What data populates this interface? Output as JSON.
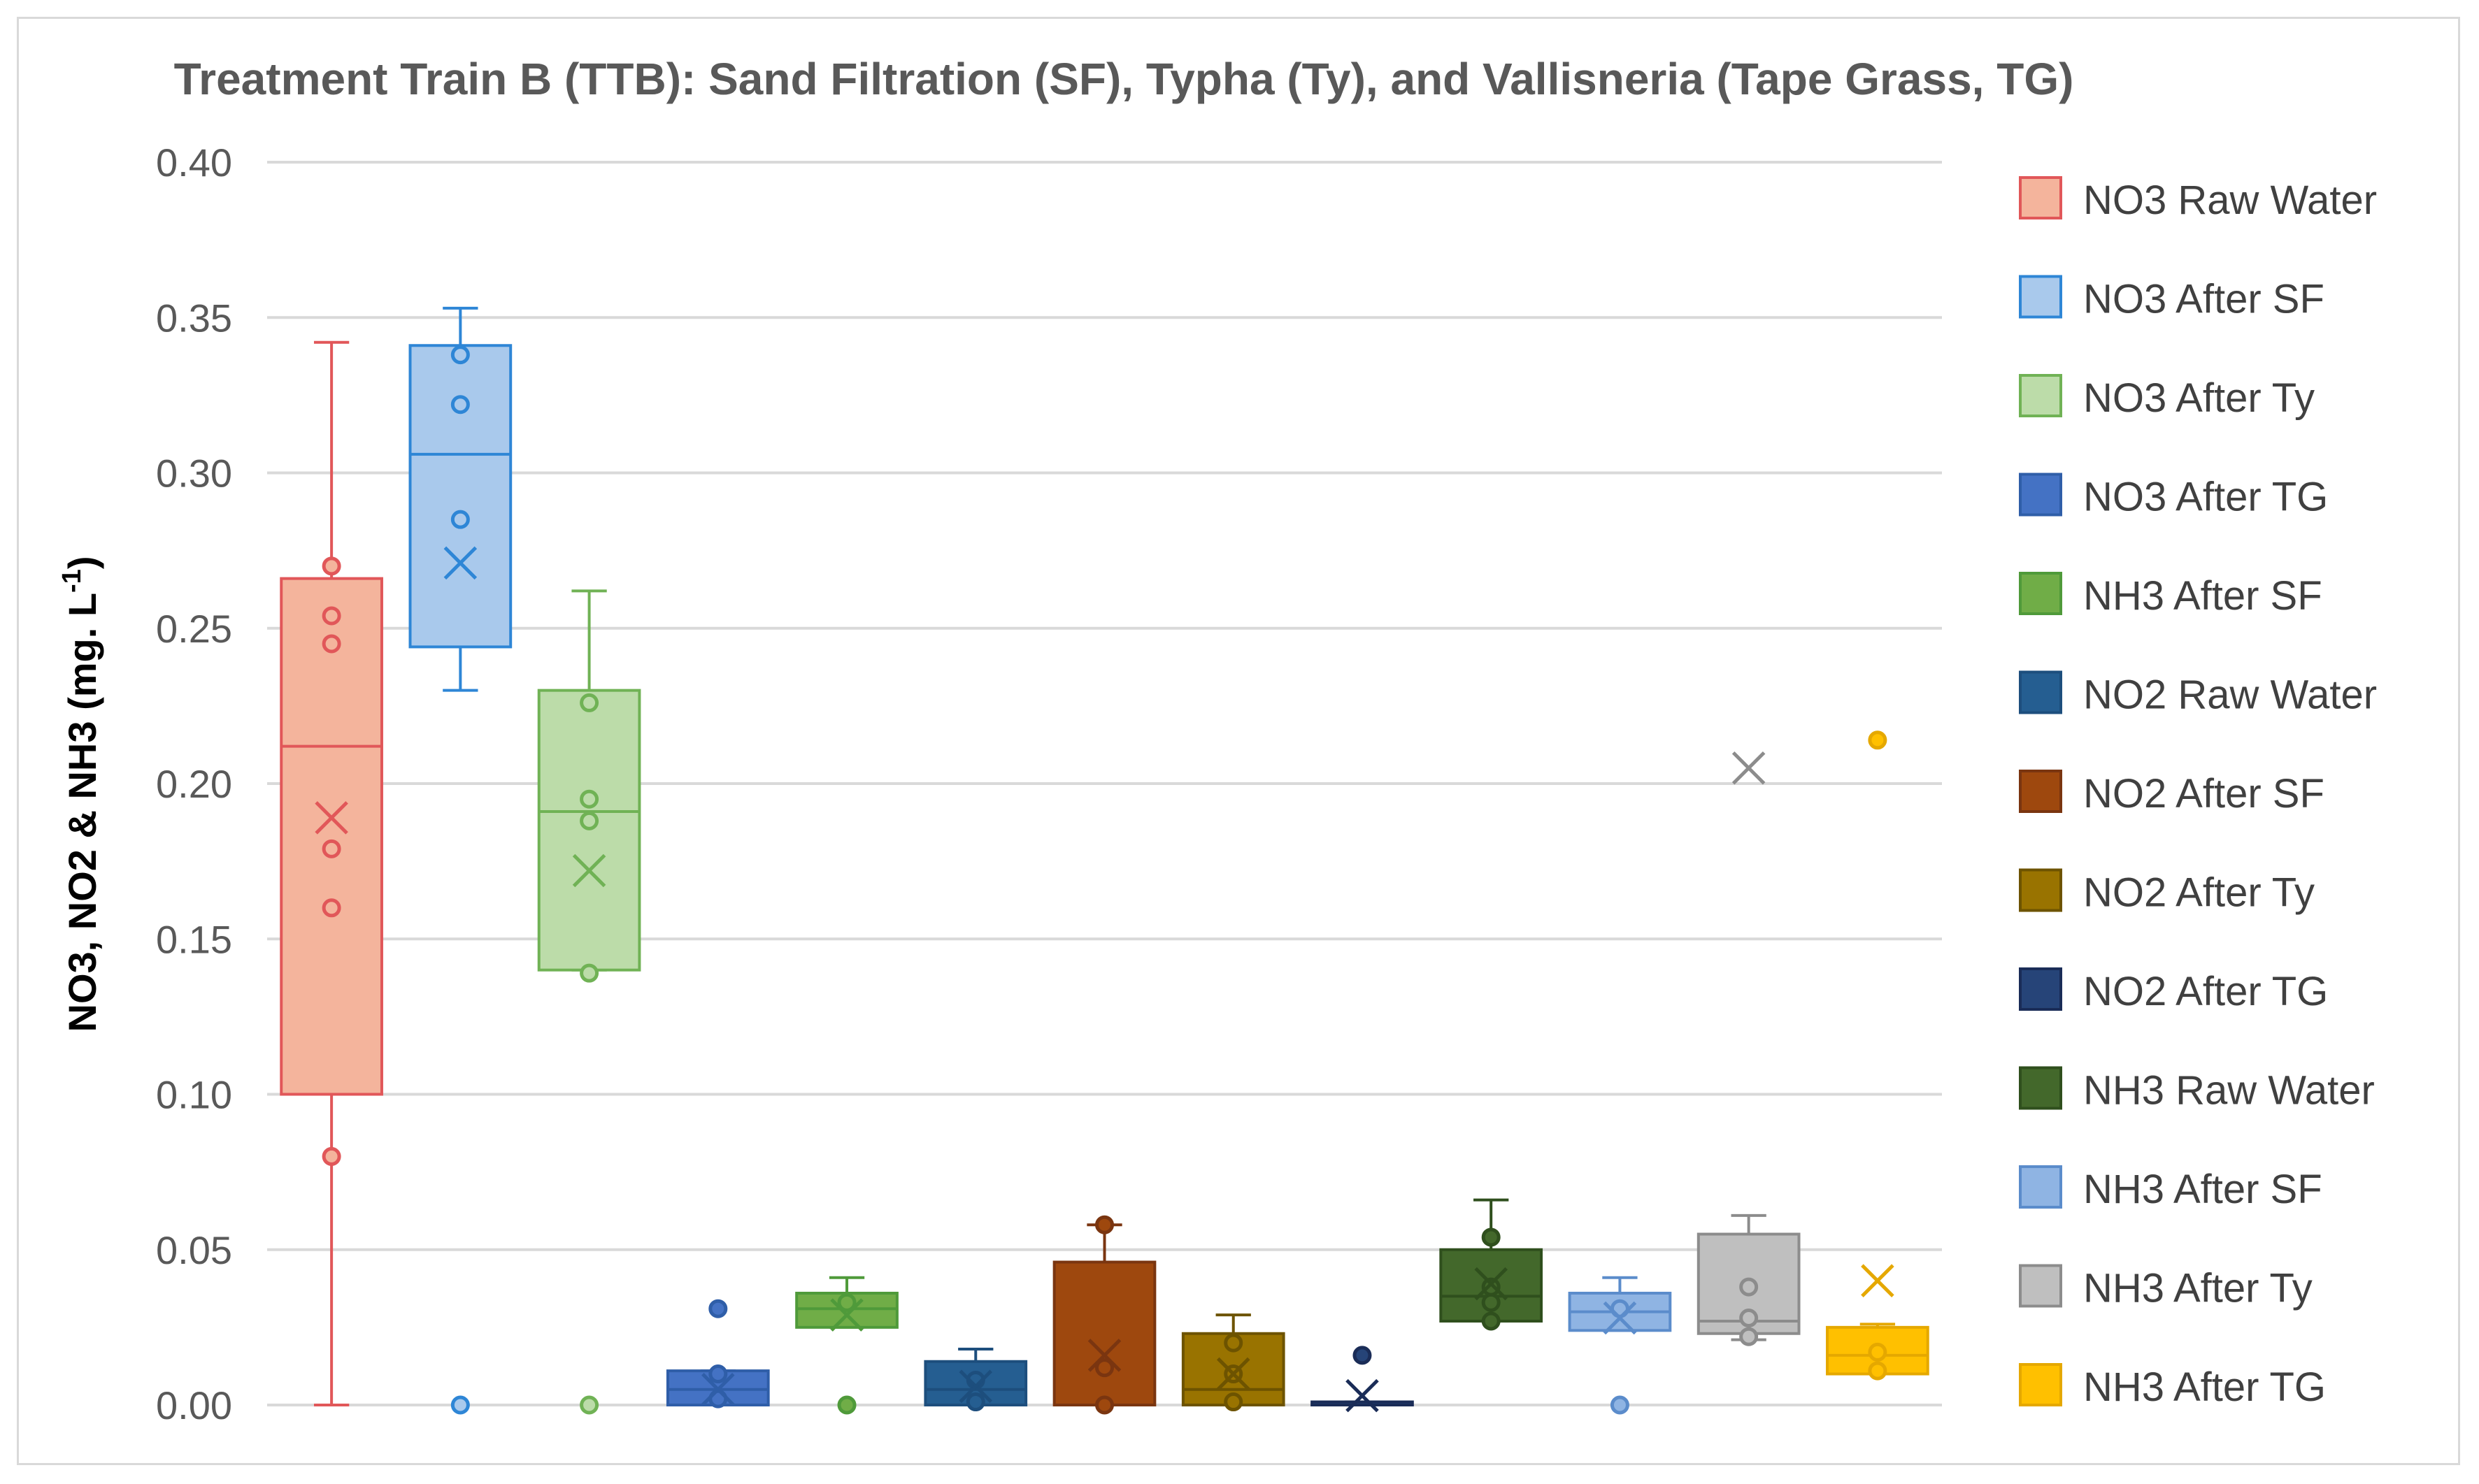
{
  "chart_data": {
    "type": "box",
    "title": "Treatment Train B (TTB): Sand Filtration (SF), Typha (Ty), and Vallisneria (Tape Grass, TG)",
    "ylabel": "NO3, NO2 & NH3 (mg. L",
    "ylabel_superscript": "-1",
    "ylabel_suffix": ")",
    "ylim": [
      0,
      0.4
    ],
    "yticks": [
      "0.00",
      "0.05",
      "0.10",
      "0.15",
      "0.20",
      "0.25",
      "0.30",
      "0.35",
      "0.40"
    ],
    "grid": true,
    "legend_position": "right",
    "series": [
      {
        "name": "NO3 Raw Water",
        "color": "#e15759",
        "fill": "#f4b49c",
        "whisker_low": 0.0,
        "q1": 0.1,
        "median": 0.212,
        "q3": 0.266,
        "whisker_high": 0.342,
        "mean": 0.189,
        "points": [
          0.08,
          0.16,
          0.179,
          0.245,
          0.254,
          0.27
        ]
      },
      {
        "name": "NO3 After SF",
        "color": "#2e86d6",
        "fill": "#a9c9ec",
        "whisker_low": 0.23,
        "q1": 0.244,
        "median": 0.306,
        "q3": 0.341,
        "whisker_high": 0.353,
        "mean": 0.271,
        "points": [
          0.0,
          0.285,
          0.322,
          0.338
        ]
      },
      {
        "name": "NO3 After Ty",
        "color": "#70b255",
        "fill": "#bcdca9",
        "whisker_low": 0.14,
        "q1": 0.14,
        "median": 0.191,
        "q3": 0.23,
        "whisker_high": 0.262,
        "mean": 0.172,
        "points": [
          0.0,
          0.139,
          0.188,
          0.195,
          0.226
        ]
      },
      {
        "name": "NO3 After TG",
        "color": "#2f5ea8",
        "fill": "#4472c4",
        "whisker_low": 0.0,
        "q1": 0.0,
        "median": 0.005,
        "q3": 0.011,
        "whisker_high": 0.011,
        "mean": 0.005,
        "points": [
          0.002,
          0.01,
          0.031
        ]
      },
      {
        "name": "NH3 After SF",
        "color": "#4f9a3a",
        "fill": "#70ad47",
        "whisker_low": 0.025,
        "q1": 0.025,
        "median": 0.031,
        "q3": 0.036,
        "whisker_high": 0.041,
        "mean": 0.029,
        "points": [
          0.0,
          0.033
        ]
      },
      {
        "name": "NO2 Raw Water",
        "color": "#1d4e7d",
        "fill": "#255e91",
        "whisker_low": 0.0,
        "q1": 0.0,
        "median": 0.005,
        "q3": 0.014,
        "whisker_high": 0.018,
        "mean": 0.006,
        "points": [
          0.001,
          0.008
        ]
      },
      {
        "name": "NO2 After SF",
        "color": "#7a3510",
        "fill": "#9e480e",
        "whisker_low": 0.0,
        "q1": 0.0,
        "median": 0.0,
        "q3": 0.046,
        "whisker_high": 0.058,
        "mean": 0.016,
        "points": [
          0.0,
          0.012,
          0.058
        ]
      },
      {
        "name": "NO2 After Ty",
        "color": "#6d5300",
        "fill": "#997300",
        "whisker_low": 0.0,
        "q1": 0.0,
        "median": 0.005,
        "q3": 0.023,
        "whisker_high": 0.029,
        "mean": 0.01,
        "points": [
          0.001,
          0.01,
          0.02
        ]
      },
      {
        "name": "NO2 After TG",
        "color": "#1a2c57",
        "fill": "#264478",
        "whisker_low": 0.0,
        "q1": 0.0,
        "median": 0.0,
        "q3": 0.001,
        "whisker_high": 0.001,
        "mean": 0.003,
        "points": [
          0.016
        ]
      },
      {
        "name": "NH3 Raw Water",
        "color": "#2f4f1d",
        "fill": "#43682b",
        "whisker_low": 0.027,
        "q1": 0.027,
        "median": 0.035,
        "q3": 0.05,
        "whisker_high": 0.066,
        "mean": 0.039,
        "points": [
          0.027,
          0.033,
          0.038,
          0.054
        ]
      },
      {
        "name": "NH3 After SF",
        "color": "#5b8ccb",
        "fill": "#8fb4e3",
        "whisker_low": 0.024,
        "q1": 0.024,
        "median": 0.03,
        "q3": 0.036,
        "whisker_high": 0.041,
        "mean": 0.028,
        "points": [
          0.0,
          0.031
        ]
      },
      {
        "name": "NH3 After Ty",
        "color": "#8c8c8c",
        "fill": "#bfbfbf",
        "whisker_low": 0.021,
        "q1": 0.023,
        "median": 0.027,
        "q3": 0.055,
        "whisker_high": 0.061,
        "mean": 0.205,
        "points": [
          0.022,
          0.028,
          0.038
        ]
      },
      {
        "name": "NH3 After TG",
        "color": "#e5a800",
        "fill": "#ffc000",
        "whisker_low": 0.01,
        "q1": 0.01,
        "median": 0.016,
        "q3": 0.025,
        "whisker_high": 0.026,
        "mean": 0.04,
        "points": [
          0.011,
          0.017,
          0.214
        ]
      }
    ]
  }
}
